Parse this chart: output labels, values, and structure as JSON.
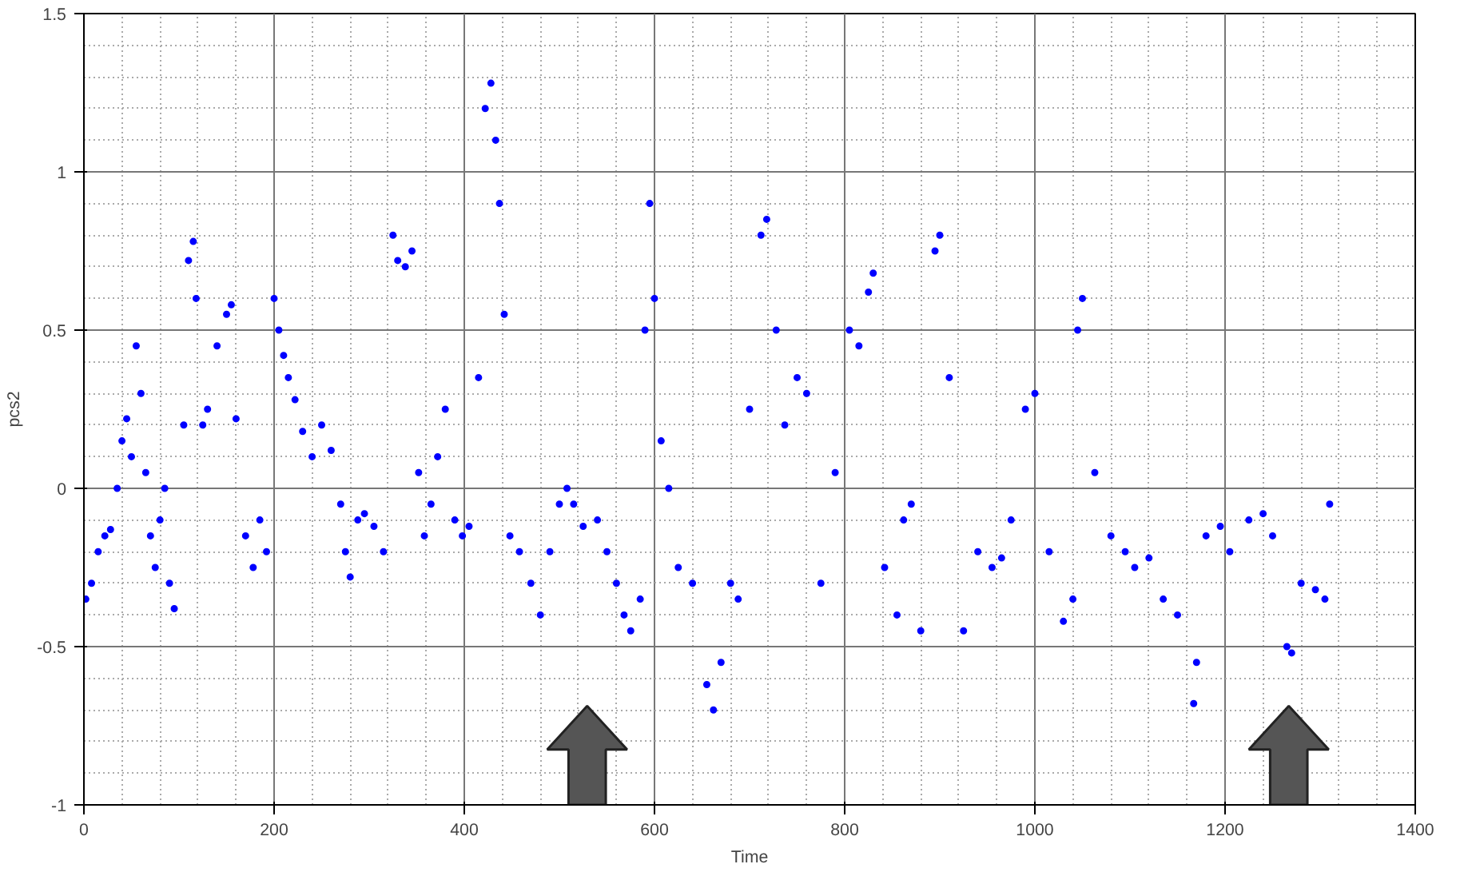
{
  "chart_data": {
    "type": "scatter",
    "xlabel": "Time",
    "ylabel": "pcs2",
    "x": [
      2,
      8,
      15,
      22,
      28,
      35,
      40,
      45,
      50,
      55,
      60,
      65,
      70,
      75,
      80,
      85,
      90,
      95,
      105,
      110,
      115,
      118,
      125,
      130,
      140,
      150,
      155,
      160,
      170,
      178,
      185,
      192,
      200,
      205,
      210,
      215,
      222,
      230,
      240,
      250,
      260,
      270,
      275,
      280,
      288,
      295,
      305,
      315,
      325,
      330,
      338,
      345,
      352,
      358,
      365,
      372,
      380,
      390,
      398,
      405,
      415,
      422,
      428,
      433,
      437,
      442,
      448,
      458,
      470,
      480,
      490,
      500,
      508,
      515,
      525,
      540,
      550,
      560,
      568,
      575,
      585,
      590,
      595,
      600,
      607,
      615,
      625,
      640,
      655,
      662,
      670,
      680,
      688,
      700,
      712,
      718,
      728,
      737,
      750,
      760,
      775,
      790,
      805,
      815,
      825,
      830,
      842,
      855,
      862,
      870,
      880,
      895,
      900,
      910,
      925,
      940,
      955,
      965,
      975,
      990,
      1000,
      1015,
      1030,
      1040,
      1045,
      1050,
      1063,
      1080,
      1095,
      1105,
      1120,
      1135,
      1150,
      1167,
      1170,
      1180,
      1195,
      1205,
      1225,
      1240,
      1250,
      1265,
      1270,
      1280,
      1295,
      1305,
      1310
    ],
    "values": [
      -0.35,
      -0.3,
      -0.2,
      -0.15,
      -0.13,
      0.0,
      0.15,
      0.22,
      0.1,
      0.45,
      0.3,
      0.05,
      -0.15,
      -0.25,
      -0.1,
      0.0,
      -0.3,
      -0.38,
      0.2,
      0.72,
      0.78,
      0.6,
      0.2,
      0.25,
      0.45,
      0.55,
      0.58,
      0.22,
      -0.15,
      -0.25,
      -0.1,
      -0.2,
      0.6,
      0.5,
      0.42,
      0.35,
      0.28,
      0.18,
      0.1,
      0.2,
      0.12,
      -0.05,
      -0.2,
      -0.28,
      -0.1,
      -0.08,
      -0.12,
      -0.2,
      0.8,
      0.72,
      0.7,
      0.75,
      0.05,
      -0.15,
      -0.05,
      0.1,
      0.25,
      -0.1,
      -0.15,
      -0.12,
      0.35,
      1.2,
      1.28,
      1.1,
      0.9,
      0.55,
      -0.15,
      -0.2,
      -0.3,
      -0.4,
      -0.2,
      -0.05,
      0.0,
      -0.05,
      -0.12,
      -0.1,
      -0.2,
      -0.3,
      -0.4,
      -0.45,
      -0.35,
      0.5,
      0.9,
      0.6,
      0.15,
      0.0,
      -0.25,
      -0.3,
      -0.62,
      -0.7,
      -0.55,
      -0.3,
      -0.35,
      0.25,
      0.8,
      0.85,
      0.5,
      0.2,
      0.35,
      0.3,
      -0.3,
      0.05,
      0.5,
      0.45,
      0.62,
      0.68,
      -0.25,
      -0.4,
      -0.1,
      -0.05,
      -0.45,
      0.75,
      0.8,
      0.35,
      -0.45,
      -0.2,
      -0.25,
      -0.22,
      -0.1,
      0.25,
      0.3,
      -0.2,
      -0.42,
      -0.35,
      0.5,
      0.6,
      0.05,
      -0.15,
      -0.2,
      -0.25,
      -0.22,
      -0.35,
      -0.4,
      -0.68,
      -0.55,
      -0.15,
      -0.12,
      -0.2,
      -0.1,
      -0.08,
      -0.15,
      -0.5,
      -0.52,
      -0.3,
      -0.32,
      -0.35,
      -0.05
    ],
    "color": "#0000ff",
    "marker": "circle",
    "grid": true,
    "xlim": [
      0,
      1400
    ],
    "xticks": [
      0,
      200,
      400,
      600,
      800,
      1000,
      1200,
      1400
    ],
    "ylim": [
      -1,
      1.5
    ],
    "yticks": [
      -1,
      -0.5,
      0,
      0.5,
      1,
      1.5
    ]
  }
}
